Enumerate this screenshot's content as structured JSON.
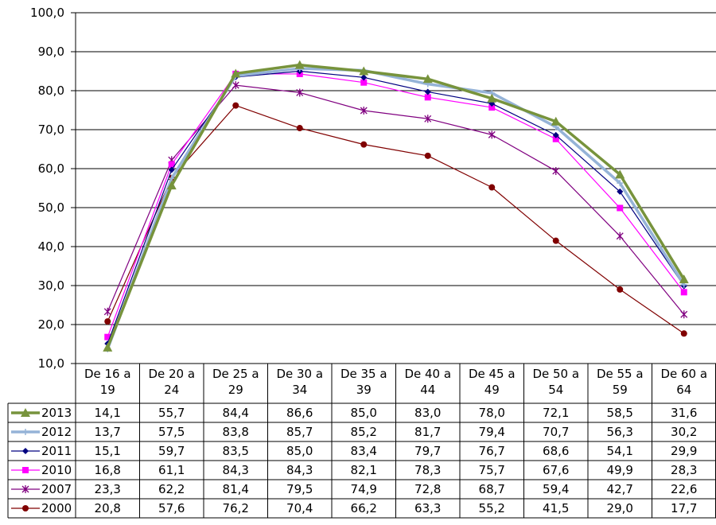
{
  "chart_data": {
    "type": "line",
    "title": "",
    "xlabel": "",
    "ylabel": "",
    "ylim": [
      10,
      100
    ],
    "yticks": [
      "10,0",
      "20,0",
      "30,0",
      "40,0",
      "50,0",
      "60,0",
      "70,0",
      "80,0",
      "90,0",
      "100,0"
    ],
    "grid": "horizontal",
    "legend": "data-table-below",
    "categories": [
      [
        "De 16 a",
        "19"
      ],
      [
        "De 20 a",
        "24"
      ],
      [
        "De 25 a",
        "29"
      ],
      [
        "De 30 a",
        "34"
      ],
      [
        "De 35 a",
        "39"
      ],
      [
        "De 40 a",
        "44"
      ],
      [
        "De 45 a",
        "49"
      ],
      [
        "De 50 a",
        "54"
      ],
      [
        "De 55 a",
        "59"
      ],
      [
        "De 60 a",
        "64"
      ]
    ],
    "series": [
      {
        "name": "2013",
        "color": "#77933C",
        "marker": "triangle",
        "values": [
          14.1,
          55.7,
          84.4,
          86.6,
          85.0,
          83.0,
          78.0,
          72.1,
          58.5,
          31.6
        ],
        "labels": [
          "14,1",
          "55,7",
          "84,4",
          "86,6",
          "85,0",
          "83,0",
          "78,0",
          "72,1",
          "58,5",
          "31,6"
        ]
      },
      {
        "name": "2012",
        "color": "#95B3D7",
        "marker": "plus",
        "values": [
          13.7,
          57.5,
          83.8,
          85.7,
          85.2,
          81.7,
          79.4,
          70.7,
          56.3,
          30.2
        ],
        "labels": [
          "13,7",
          "57,5",
          "83,8",
          "85,7",
          "85,2",
          "81,7",
          "79,4",
          "70,7",
          "56,3",
          "30,2"
        ]
      },
      {
        "name": "2011",
        "color": "#000080",
        "marker": "diamond",
        "values": [
          15.1,
          59.7,
          83.5,
          85.0,
          83.4,
          79.7,
          76.7,
          68.6,
          54.1,
          29.9
        ],
        "labels": [
          "15,1",
          "59,7",
          "83,5",
          "85,0",
          "83,4",
          "79,7",
          "76,7",
          "68,6",
          "54,1",
          "29,9"
        ]
      },
      {
        "name": "2010",
        "color": "#FF00FF",
        "marker": "square",
        "values": [
          16.8,
          61.1,
          84.3,
          84.3,
          82.1,
          78.3,
          75.7,
          67.6,
          49.9,
          28.3
        ],
        "labels": [
          "16,8",
          "61,1",
          "84,3",
          "84,3",
          "82,1",
          "78,3",
          "75,7",
          "67,6",
          "49,9",
          "28,3"
        ]
      },
      {
        "name": "2007",
        "color": "#800080",
        "marker": "star",
        "values": [
          23.3,
          62.2,
          81.4,
          79.5,
          74.9,
          72.8,
          68.7,
          59.4,
          42.7,
          22.6
        ],
        "labels": [
          "23,3",
          "62,2",
          "81,4",
          "79,5",
          "74,9",
          "72,8",
          "68,7",
          "59,4",
          "42,7",
          "22,6"
        ]
      },
      {
        "name": "2000",
        "color": "#800000",
        "marker": "circle",
        "values": [
          20.8,
          57.6,
          76.2,
          70.4,
          66.2,
          63.3,
          55.2,
          41.5,
          29.0,
          17.7
        ],
        "labels": [
          "20,8",
          "57,6",
          "76,2",
          "70,4",
          "66,2",
          "63,3",
          "55,2",
          "41,5",
          "29,0",
          "17,7"
        ]
      }
    ]
  }
}
